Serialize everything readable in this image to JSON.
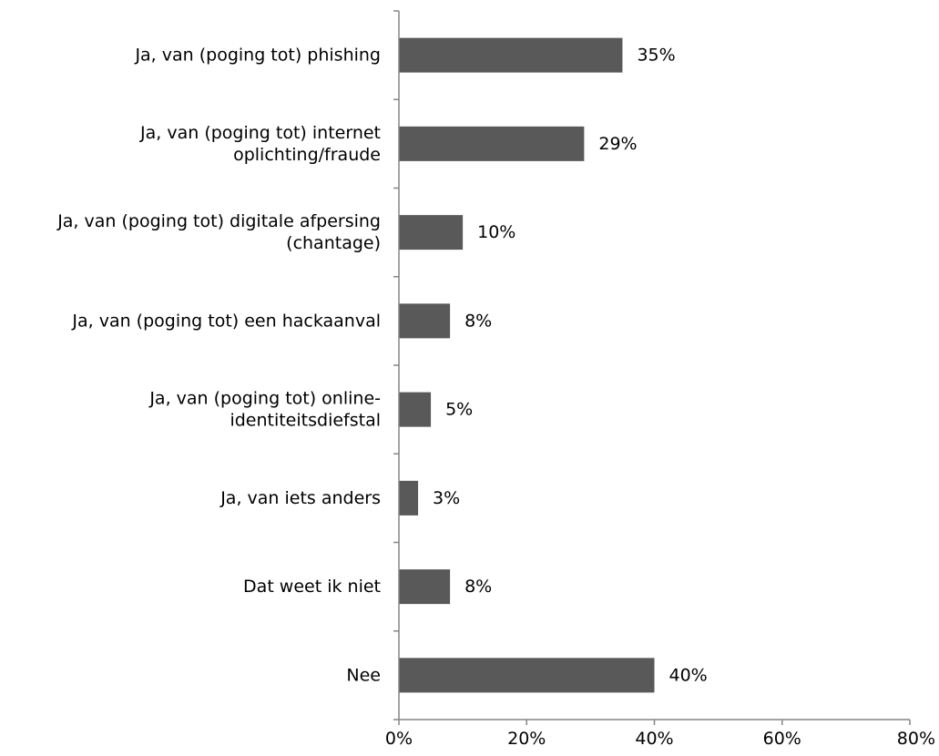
{
  "chart_data": {
    "type": "bar",
    "orientation": "horizontal",
    "categories": [
      [
        "Ja, van (poging tot) phishing"
      ],
      [
        "Ja, van (poging tot) internet",
        "oplichting/fraude"
      ],
      [
        "Ja, van (poging tot) digitale afpersing",
        "(chantage)"
      ],
      [
        "Ja, van (poging tot) een hackaanval"
      ],
      [
        "Ja, van (poging tot) online-",
        "identiteitsdiefstal"
      ],
      [
        "Ja, van iets anders"
      ],
      [
        "Dat weet ik niet"
      ],
      [
        "Nee"
      ]
    ],
    "values": [
      35,
      29,
      10,
      8,
      5,
      3,
      8,
      40
    ],
    "data_labels": [
      "35%",
      "29%",
      "10%",
      "8%",
      "5%",
      "3%",
      "8%",
      "40%"
    ],
    "x_ticks": [
      0,
      20,
      40,
      60,
      80
    ],
    "x_tick_labels": [
      "0%",
      "20%",
      "40%",
      "60%",
      "80%"
    ],
    "xlim": [
      0,
      80
    ],
    "title": "",
    "xlabel": "",
    "ylabel": "",
    "grid": false,
    "legend": "none",
    "colors": {
      "bar": "#595959",
      "axis": "#868686",
      "text": "#000000"
    }
  }
}
